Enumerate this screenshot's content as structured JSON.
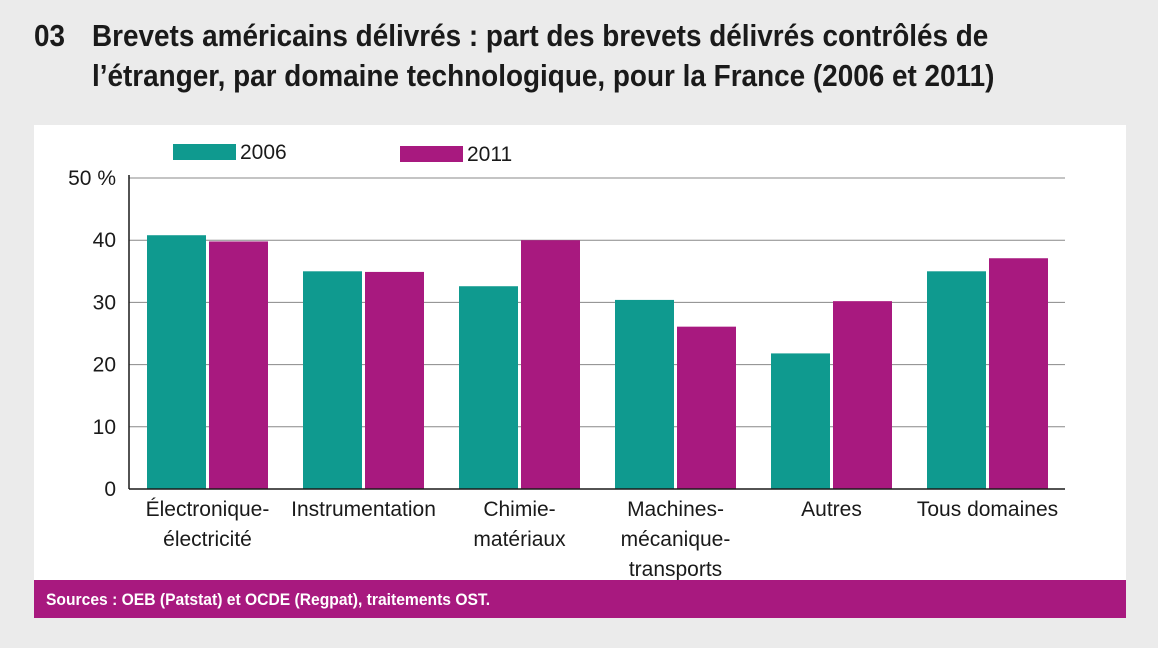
{
  "header": {
    "figure_number": "03",
    "title_line_1": "Brevets américains délivrés : part des brevets délivrés contrôlés de",
    "title_line_2": "l’étranger, par domaine technologique, pour la France (2006 et 2011)"
  },
  "footer": {
    "source": "Sources : OEB (Patstat) et OCDE (Regpat), traitements OST."
  },
  "colors": {
    "series_2006": "#0f9a8f",
    "series_2011": "#a8197f",
    "background": "#ebebeb",
    "gridline": "#888888"
  },
  "chart_data": {
    "type": "bar",
    "title": "Brevets américains délivrés : part des brevets délivrés contrôlés de l’étranger, par domaine technologique, pour la France (2006 et 2011)",
    "xlabel": "",
    "ylabel": "",
    "ylim": [
      0,
      50
    ],
    "yticks": [
      0,
      10,
      20,
      30,
      40,
      50
    ],
    "ytick_labels": [
      "0",
      "10",
      "20",
      "30",
      "40",
      "50 %"
    ],
    "grid": true,
    "legend_position": "top-left",
    "categories": [
      [
        "Électronique-",
        "électricité"
      ],
      [
        "Instrumentation"
      ],
      [
        "Chimie-",
        "matériaux"
      ],
      [
        "Machines-",
        "mécanique-",
        "transports"
      ],
      [
        "Autres"
      ],
      [
        "Tous domaines"
      ]
    ],
    "series": [
      {
        "name": "2006",
        "values": [
          40.8,
          35.0,
          32.6,
          30.4,
          21.8,
          35.0
        ]
      },
      {
        "name": "2011",
        "values": [
          39.8,
          34.9,
          40.0,
          26.1,
          30.2,
          37.1
        ]
      }
    ]
  }
}
